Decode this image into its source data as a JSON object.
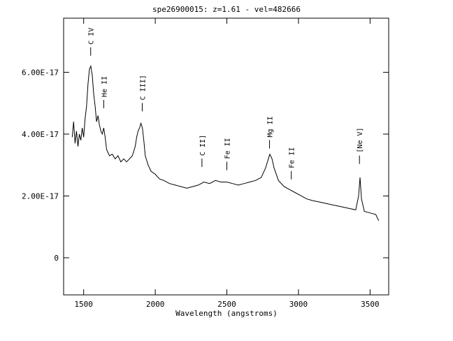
{
  "chart_data": {
    "type": "line",
    "title": "spe26900015: z=1.61 - vel=482666",
    "xlabel": "Wavelength (angstroms)",
    "ylabel": "",
    "xlim": [
      1360,
      3630
    ],
    "ylim": [
      -1.2e-17,
      7.75e-17
    ],
    "x_ticks": [
      {
        "value": 1500,
        "label": "1500"
      },
      {
        "value": 2000,
        "label": "2000"
      },
      {
        "value": 2500,
        "label": "2500"
      },
      {
        "value": 3000,
        "label": "3000"
      },
      {
        "value": 3500,
        "label": "3500"
      }
    ],
    "y_ticks": [
      {
        "value": 0,
        "label": "0"
      },
      {
        "value": 2e-17,
        "label": "2.00E-17"
      },
      {
        "value": 4e-17,
        "label": "4.00E-17"
      },
      {
        "value": 6e-17,
        "label": "6.00E-17"
      }
    ],
    "series": [
      {
        "color": "#000000",
        "points": [
          [
            1420,
            3.9e-17
          ],
          [
            1430,
            4.4e-17
          ],
          [
            1440,
            3.7e-17
          ],
          [
            1450,
            4.1e-17
          ],
          [
            1460,
            3.6e-17
          ],
          [
            1470,
            4e-17
          ],
          [
            1480,
            3.8e-17
          ],
          [
            1490,
            4.2e-17
          ],
          [
            1500,
            3.9e-17
          ],
          [
            1510,
            4.5e-17
          ],
          [
            1520,
            4.9e-17
          ],
          [
            1530,
            5.6e-17
          ],
          [
            1540,
            6.1e-17
          ],
          [
            1550,
            6.2e-17
          ],
          [
            1560,
            5.9e-17
          ],
          [
            1570,
            5.3e-17
          ],
          [
            1580,
            4.9e-17
          ],
          [
            1590,
            4.4e-17
          ],
          [
            1600,
            4.6e-17
          ],
          [
            1610,
            4.3e-17
          ],
          [
            1620,
            4.1e-17
          ],
          [
            1630,
            4e-17
          ],
          [
            1640,
            4.2e-17
          ],
          [
            1650,
            3.9e-17
          ],
          [
            1660,
            3.5e-17
          ],
          [
            1680,
            3.3e-17
          ],
          [
            1700,
            3.35e-17
          ],
          [
            1720,
            3.2e-17
          ],
          [
            1740,
            3.3e-17
          ],
          [
            1760,
            3.1e-17
          ],
          [
            1780,
            3.2e-17
          ],
          [
            1800,
            3.1e-17
          ],
          [
            1820,
            3.2e-17
          ],
          [
            1840,
            3.3e-17
          ],
          [
            1860,
            3.6e-17
          ],
          [
            1870,
            3.9e-17
          ],
          [
            1880,
            4.1e-17
          ],
          [
            1890,
            4.2e-17
          ],
          [
            1900,
            4.35e-17
          ],
          [
            1910,
            4.2e-17
          ],
          [
            1920,
            3.8e-17
          ],
          [
            1930,
            3.3e-17
          ],
          [
            1950,
            3e-17
          ],
          [
            1970,
            2.8e-17
          ],
          [
            2000,
            2.7e-17
          ],
          [
            2030,
            2.55e-17
          ],
          [
            2060,
            2.5e-17
          ],
          [
            2100,
            2.4e-17
          ],
          [
            2140,
            2.35e-17
          ],
          [
            2180,
            2.3e-17
          ],
          [
            2220,
            2.25e-17
          ],
          [
            2260,
            2.3e-17
          ],
          [
            2300,
            2.35e-17
          ],
          [
            2340,
            2.45e-17
          ],
          [
            2380,
            2.4e-17
          ],
          [
            2420,
            2.5e-17
          ],
          [
            2460,
            2.45e-17
          ],
          [
            2500,
            2.45e-17
          ],
          [
            2540,
            2.4e-17
          ],
          [
            2580,
            2.35e-17
          ],
          [
            2620,
            2.4e-17
          ],
          [
            2660,
            2.45e-17
          ],
          [
            2700,
            2.5e-17
          ],
          [
            2740,
            2.6e-17
          ],
          [
            2770,
            2.9e-17
          ],
          [
            2790,
            3.2e-17
          ],
          [
            2800,
            3.35e-17
          ],
          [
            2815,
            3.2e-17
          ],
          [
            2830,
            2.9e-17
          ],
          [
            2860,
            2.5e-17
          ],
          [
            2900,
            2.3e-17
          ],
          [
            2940,
            2.2e-17
          ],
          [
            2980,
            2.1e-17
          ],
          [
            3020,
            2e-17
          ],
          [
            3060,
            1.9e-17
          ],
          [
            3100,
            1.85e-17
          ],
          [
            3150,
            1.8e-17
          ],
          [
            3200,
            1.75e-17
          ],
          [
            3250,
            1.7e-17
          ],
          [
            3300,
            1.65e-17
          ],
          [
            3350,
            1.6e-17
          ],
          [
            3400,
            1.55e-17
          ],
          [
            3420,
            2e-17
          ],
          [
            3430,
            2.6e-17
          ],
          [
            3440,
            1.9e-17
          ],
          [
            3460,
            1.5e-17
          ],
          [
            3500,
            1.45e-17
          ],
          [
            3540,
            1.4e-17
          ],
          [
            3560,
            1.2e-17
          ]
        ]
      }
    ],
    "annotations": [
      {
        "label": "C IV",
        "x": 1549,
        "y": 6.4e-17
      },
      {
        "label": "He II",
        "x": 1640,
        "y": 4.7e-17
      },
      {
        "label": "C III]",
        "x": 1909,
        "y": 4.6e-17
      },
      {
        "label": "C II]",
        "x": 2326,
        "y": 2.8e-17
      },
      {
        "label": "Fe II",
        "x": 2500,
        "y": 2.7e-17
      },
      {
        "label": "Mg II",
        "x": 2798,
        "y": 3.4e-17
      },
      {
        "label": "Fe II",
        "x": 2950,
        "y": 2.4e-17
      },
      {
        "label": "[Ne V]",
        "x": 3426,
        "y": 2.9e-17
      }
    ]
  }
}
